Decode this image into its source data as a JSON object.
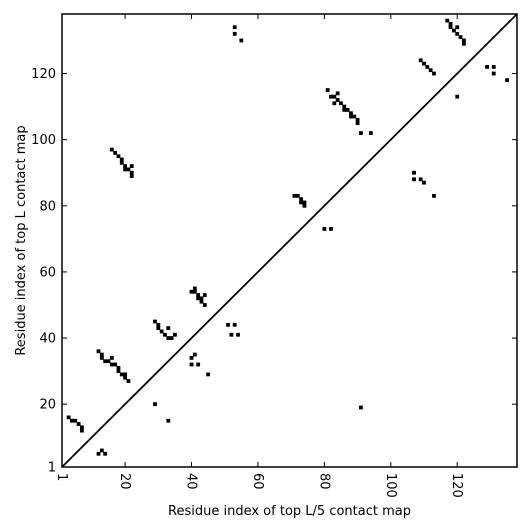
{
  "chart_data": {
    "type": "scatter",
    "xlabel": "Residue index of top L/5 contact map",
    "ylabel": "Residue index of top L contact map",
    "xlim": [
      1,
      138
    ],
    "ylim": [
      1,
      138
    ],
    "x_ticks": [
      1,
      20,
      40,
      60,
      80,
      100,
      120
    ],
    "y_ticks": [
      1,
      20,
      40,
      60,
      80,
      100,
      120
    ],
    "x_tick_rotation": -90,
    "diagonal": true,
    "grid": false,
    "marker_color": "#000000",
    "upper_triangle_points": [
      [
        3,
        16
      ],
      [
        4,
        15
      ],
      [
        5,
        15
      ],
      [
        6,
        14
      ],
      [
        7,
        13
      ],
      [
        7,
        12
      ],
      [
        12,
        5
      ],
      [
        13,
        6
      ],
      [
        14,
        5
      ],
      [
        12,
        36
      ],
      [
        13,
        35
      ],
      [
        13,
        34
      ],
      [
        14,
        33
      ],
      [
        15,
        33
      ],
      [
        16,
        34
      ],
      [
        16,
        32
      ],
      [
        17,
        32
      ],
      [
        18,
        31
      ],
      [
        18,
        30
      ],
      [
        19,
        29
      ],
      [
        20,
        29
      ],
      [
        20,
        28
      ],
      [
        21,
        27
      ],
      [
        16,
        97
      ],
      [
        17,
        96
      ],
      [
        18,
        95
      ],
      [
        19,
        94
      ],
      [
        19,
        93
      ],
      [
        20,
        92
      ],
      [
        21,
        91
      ],
      [
        22,
        92
      ],
      [
        20,
        91
      ],
      [
        22,
        90
      ],
      [
        22,
        89
      ],
      [
        29,
        20
      ],
      [
        29,
        45
      ],
      [
        30,
        44
      ],
      [
        30,
        43
      ],
      [
        31,
        42
      ],
      [
        32,
        41
      ],
      [
        33,
        40
      ],
      [
        34,
        40
      ],
      [
        33,
        43
      ],
      [
        35,
        41
      ],
      [
        33,
        15
      ],
      [
        40,
        54
      ],
      [
        41,
        55
      ],
      [
        41,
        54
      ],
      [
        42,
        53
      ],
      [
        42,
        52
      ],
      [
        43,
        52
      ],
      [
        43,
        51
      ],
      [
        44,
        50
      ],
      [
        44,
        53
      ],
      [
        40,
        34
      ],
      [
        41,
        35
      ],
      [
        40,
        32
      ],
      [
        42,
        32
      ],
      [
        45,
        29
      ],
      [
        51,
        44
      ],
      [
        53,
        44
      ],
      [
        52,
        41
      ],
      [
        54,
        41
      ],
      [
        53,
        134
      ],
      [
        53,
        132
      ],
      [
        55,
        130
      ],
      [
        71,
        83
      ],
      [
        72,
        83
      ],
      [
        73,
        82
      ],
      [
        73,
        81
      ],
      [
        74,
        81
      ],
      [
        74,
        80
      ],
      [
        80,
        73
      ],
      [
        82,
        73
      ],
      [
        81,
        115
      ],
      [
        82,
        113
      ],
      [
        83,
        113
      ],
      [
        84,
        114
      ],
      [
        84,
        112
      ],
      [
        83,
        111
      ],
      [
        85,
        111
      ],
      [
        86,
        110
      ],
      [
        86,
        109
      ],
      [
        87,
        109
      ],
      [
        88,
        108
      ],
      [
        88,
        107
      ],
      [
        89,
        107
      ],
      [
        90,
        106
      ],
      [
        90,
        105
      ],
      [
        91,
        102
      ],
      [
        94,
        102
      ],
      [
        91,
        19
      ],
      [
        107,
        90
      ],
      [
        107,
        88
      ],
      [
        109,
        88
      ],
      [
        110,
        87
      ],
      [
        109,
        124
      ],
      [
        110,
        123
      ],
      [
        111,
        122
      ],
      [
        112,
        121
      ],
      [
        113,
        120
      ],
      [
        113,
        83
      ],
      [
        117,
        136
      ],
      [
        118,
        135
      ],
      [
        118,
        134
      ],
      [
        119,
        133
      ],
      [
        120,
        134
      ],
      [
        120,
        132
      ],
      [
        121,
        131
      ],
      [
        122,
        130
      ],
      [
        122,
        129
      ],
      [
        120,
        113
      ],
      [
        129,
        122
      ],
      [
        131,
        122
      ],
      [
        131,
        120
      ],
      [
        135,
        118
      ]
    ]
  }
}
